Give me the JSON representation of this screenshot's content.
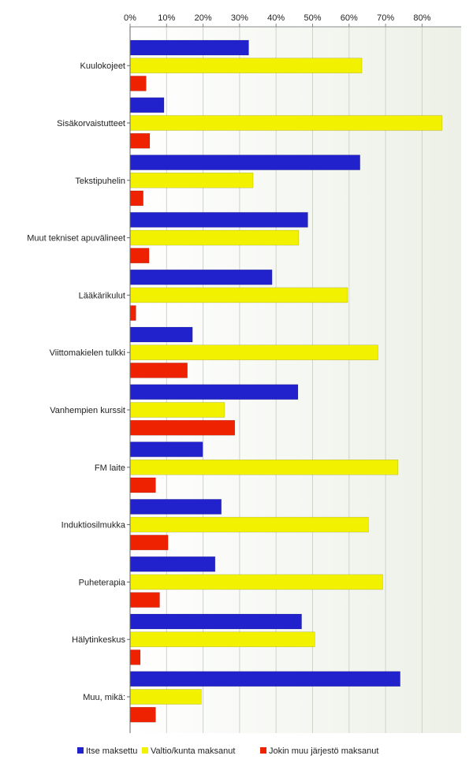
{
  "chart_data": {
    "type": "bar",
    "orientation": "horizontal",
    "categories": [
      "Kuulokojeet",
      "Sisäkorvaistutteet",
      "Tekstipuhelin",
      "Muut tekniset apuvälineet",
      "Lääkärikulut",
      "Viittomakielen tulkki",
      "Vanhempien kurssit",
      "FM laite",
      "Induktiosilmukka",
      "Puheterapia",
      "Hälytinkeskus",
      "Muu, mikä:"
    ],
    "series": [
      {
        "name": "Itse maksettu",
        "color": "#2222cc",
        "values": [
          32.5,
          9.3,
          63,
          48.7,
          38.9,
          17.1,
          46,
          19.9,
          25,
          23.3,
          47,
          74
        ]
      },
      {
        "name": "Valtio/kunta maksanut",
        "color": "#f2f200",
        "values": [
          63.5,
          85.5,
          33.7,
          46.2,
          59.6,
          67.9,
          25.9,
          73.4,
          65.3,
          69.2,
          50.6,
          19.5
        ]
      },
      {
        "name": "Jokin muu järjestö maksanut",
        "color": "#ee2200",
        "values": [
          4.4,
          5.4,
          3.6,
          5.2,
          1.6,
          15.7,
          28.7,
          7,
          10.4,
          8.1,
          2.8,
          7
        ]
      }
    ],
    "x_ticks": [
      "0%",
      "10%",
      "20%",
      "30%",
      "40%",
      "50%",
      "60%",
      "70%",
      "80%"
    ],
    "xlim": [
      0,
      90
    ],
    "grid": true,
    "legend_position": "bottom"
  }
}
